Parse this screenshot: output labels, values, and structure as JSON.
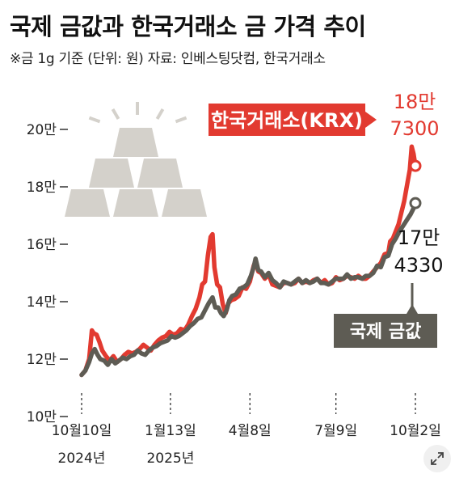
{
  "title": "국제 금값과 한국거래소 금 가격 추이",
  "subtitle": "※금 1g 기준 (단위: 원) 자료: 인베스팅닷컴, 한국거래소",
  "chart_data": {
    "type": "line",
    "yticks": [
      "20만",
      "18만",
      "16만",
      "14만",
      "12만",
      "10만"
    ],
    "ytick_values": [
      200000,
      180000,
      160000,
      140000,
      120000,
      100000
    ],
    "ylim": [
      100000,
      200000
    ],
    "xticks": [
      {
        "line1": "10월10일",
        "line2": "2024년",
        "t": 0
      },
      {
        "line1": "1월13일",
        "line2": "2025년",
        "t": 95
      },
      {
        "line1": "4월8일",
        "line2": "",
        "t": 180
      },
      {
        "line1": "7월9일",
        "line2": "",
        "t": 272
      },
      {
        "line1": "10월2일",
        "line2": "",
        "t": 357
      }
    ],
    "series": [
      {
        "name": "한국거래소(KRX)",
        "color": "#e23a30",
        "end_label_line1": "18만",
        "end_label_line2": "7300",
        "points": [
          [
            0,
            114500
          ],
          [
            4,
            116000
          ],
          [
            8,
            120000
          ],
          [
            11,
            130000
          ],
          [
            13,
            129000
          ],
          [
            16,
            128500
          ],
          [
            19,
            126000
          ],
          [
            22,
            123000
          ],
          [
            26,
            121000
          ],
          [
            30,
            119500
          ],
          [
            34,
            121000
          ],
          [
            38,
            119000
          ],
          [
            42,
            120000
          ],
          [
            46,
            121500
          ],
          [
            50,
            122500
          ],
          [
            54,
            122000
          ],
          [
            58,
            122500
          ],
          [
            62,
            123500
          ],
          [
            66,
            125000
          ],
          [
            70,
            124000
          ],
          [
            74,
            123000
          ],
          [
            78,
            125000
          ],
          [
            82,
            126500
          ],
          [
            86,
            127500
          ],
          [
            90,
            128000
          ],
          [
            94,
            129500
          ],
          [
            98,
            128500
          ],
          [
            102,
            129000
          ],
          [
            106,
            130500
          ],
          [
            110,
            130000
          ],
          [
            114,
            132000
          ],
          [
            118,
            135000
          ],
          [
            122,
            137500
          ],
          [
            126,
            141500
          ],
          [
            129,
            146000
          ],
          [
            132,
            147000
          ],
          [
            135,
            156000
          ],
          [
            138,
            162500
          ],
          [
            140,
            163500
          ],
          [
            142,
            152000
          ],
          [
            145,
            146000
          ],
          [
            148,
            145000
          ],
          [
            151,
            139000
          ],
          [
            154,
            136000
          ],
          [
            157,
            139500
          ],
          [
            160,
            140500
          ],
          [
            164,
            141000
          ],
          [
            168,
            142000
          ],
          [
            172,
            145000
          ],
          [
            176,
            144500
          ],
          [
            180,
            147000
          ],
          [
            184,
            152500
          ],
          [
            186,
            154000
          ],
          [
            189,
            150500
          ],
          [
            192,
            150000
          ],
          [
            196,
            148000
          ],
          [
            200,
            149500
          ],
          [
            204,
            146000
          ],
          [
            208,
            145500
          ],
          [
            212,
            145000
          ],
          [
            216,
            146500
          ],
          [
            220,
            146500
          ],
          [
            224,
            146000
          ],
          [
            228,
            146500
          ],
          [
            232,
            148000
          ],
          [
            236,
            146500
          ],
          [
            240,
            147000
          ],
          [
            244,
            146500
          ],
          [
            248,
            147500
          ],
          [
            252,
            148000
          ],
          [
            256,
            146500
          ],
          [
            260,
            147500
          ],
          [
            264,
            146000
          ],
          [
            268,
            146500
          ],
          [
            272,
            148500
          ],
          [
            276,
            147500
          ],
          [
            280,
            148000
          ],
          [
            284,
            149000
          ],
          [
            288,
            148500
          ],
          [
            292,
            148000
          ],
          [
            296,
            149000
          ],
          [
            300,
            148000
          ],
          [
            304,
            148000
          ],
          [
            308,
            149000
          ],
          [
            312,
            150500
          ],
          [
            316,
            152000
          ],
          [
            320,
            153500
          ],
          [
            324,
            156500
          ],
          [
            328,
            157000
          ],
          [
            330,
            161000
          ],
          [
            333,
            162000
          ],
          [
            336,
            164500
          ],
          [
            339,
            167000
          ],
          [
            342,
            171000
          ],
          [
            345,
            175000
          ],
          [
            348,
            180500
          ],
          [
            351,
            186000
          ],
          [
            353,
            194000
          ],
          [
            355,
            191500
          ],
          [
            357,
            187300
          ]
        ]
      },
      {
        "name": "국제 금값",
        "color": "#5e5c54",
        "end_label_line1": "17만",
        "end_label_line2": "4330",
        "points": [
          [
            0,
            114500
          ],
          [
            4,
            116000
          ],
          [
            8,
            119000
          ],
          [
            11,
            122000
          ],
          [
            14,
            123500
          ],
          [
            17,
            121500
          ],
          [
            20,
            120000
          ],
          [
            24,
            119500
          ],
          [
            28,
            118000
          ],
          [
            32,
            120000
          ],
          [
            36,
            118500
          ],
          [
            40,
            119500
          ],
          [
            44,
            120500
          ],
          [
            48,
            120000
          ],
          [
            52,
            121000
          ],
          [
            56,
            121500
          ],
          [
            60,
            123000
          ],
          [
            64,
            122000
          ],
          [
            68,
            121500
          ],
          [
            72,
            123000
          ],
          [
            76,
            124000
          ],
          [
            80,
            124500
          ],
          [
            84,
            125500
          ],
          [
            88,
            126000
          ],
          [
            92,
            126500
          ],
          [
            96,
            128000
          ],
          [
            100,
            127500
          ],
          [
            104,
            128000
          ],
          [
            108,
            129000
          ],
          [
            112,
            130000
          ],
          [
            116,
            131500
          ],
          [
            120,
            132500
          ],
          [
            124,
            134000
          ],
          [
            128,
            134500
          ],
          [
            132,
            137000
          ],
          [
            136,
            139500
          ],
          [
            140,
            141500
          ],
          [
            143,
            138000
          ],
          [
            146,
            138000
          ],
          [
            149,
            136000
          ],
          [
            152,
            135000
          ],
          [
            155,
            137000
          ],
          [
            158,
            140500
          ],
          [
            161,
            142000
          ],
          [
            165,
            142500
          ],
          [
            169,
            144500
          ],
          [
            173,
            145000
          ],
          [
            177,
            146000
          ],
          [
            181,
            149000
          ],
          [
            184,
            152000
          ],
          [
            186,
            155000
          ],
          [
            189,
            151000
          ],
          [
            192,
            150500
          ],
          [
            196,
            148500
          ],
          [
            200,
            150000
          ],
          [
            204,
            147500
          ],
          [
            208,
            146500
          ],
          [
            212,
            145000
          ],
          [
            216,
            147000
          ],
          [
            220,
            146500
          ],
          [
            224,
            146000
          ],
          [
            228,
            147000
          ],
          [
            232,
            148000
          ],
          [
            236,
            146500
          ],
          [
            240,
            147500
          ],
          [
            244,
            146500
          ],
          [
            248,
            147000
          ],
          [
            252,
            148000
          ],
          [
            256,
            146500
          ],
          [
            260,
            146500
          ],
          [
            264,
            146000
          ],
          [
            268,
            147000
          ],
          [
            272,
            148000
          ],
          [
            276,
            148000
          ],
          [
            280,
            148000
          ],
          [
            284,
            149500
          ],
          [
            288,
            148000
          ],
          [
            292,
            148500
          ],
          [
            296,
            148500
          ],
          [
            300,
            148000
          ],
          [
            304,
            149000
          ],
          [
            308,
            149000
          ],
          [
            312,
            150000
          ],
          [
            316,
            152500
          ],
          [
            320,
            152000
          ],
          [
            324,
            155500
          ],
          [
            328,
            156000
          ],
          [
            332,
            160000
          ],
          [
            336,
            162000
          ],
          [
            340,
            164500
          ],
          [
            344,
            166500
          ],
          [
            348,
            168500
          ],
          [
            352,
            170500
          ],
          [
            355,
            172500
          ],
          [
            357,
            174330
          ]
        ]
      }
    ],
    "legend": "inline labels"
  }
}
